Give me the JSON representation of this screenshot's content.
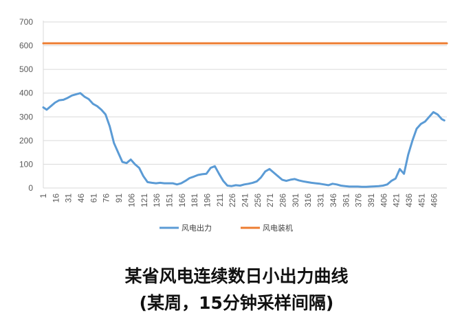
{
  "chart_data": {
    "type": "line",
    "x_ticks": [
      "1",
      "16",
      "31",
      "46",
      "61",
      "76",
      "91",
      "106",
      "121",
      "136",
      "151",
      "166",
      "181",
      "196",
      "211",
      "226",
      "241",
      "256",
      "271",
      "286",
      "301",
      "316",
      "331",
      "346",
      "361",
      "376",
      "391",
      "406",
      "421",
      "436",
      "451",
      "466"
    ],
    "y_ticks": [
      "0",
      "100",
      "200",
      "300",
      "400",
      "500",
      "600",
      "700"
    ],
    "ylim": [
      0,
      700
    ],
    "xlim": [
      1,
      481
    ],
    "grid": "horizontal",
    "legend_position": "bottom",
    "series": [
      {
        "name": "风电出力",
        "color": "#5b9bd5",
        "x": [
          1,
          5,
          10,
          15,
          20,
          25,
          30,
          35,
          40,
          45,
          50,
          55,
          60,
          65,
          70,
          75,
          80,
          85,
          90,
          95,
          100,
          105,
          110,
          115,
          120,
          125,
          130,
          135,
          140,
          145,
          150,
          155,
          160,
          165,
          170,
          175,
          180,
          185,
          190,
          195,
          200,
          205,
          210,
          215,
          220,
          225,
          230,
          235,
          240,
          245,
          250,
          255,
          260,
          265,
          270,
          275,
          280,
          285,
          290,
          295,
          300,
          305,
          310,
          315,
          320,
          325,
          330,
          335,
          340,
          345,
          350,
          355,
          360,
          365,
          370,
          375,
          380,
          385,
          390,
          395,
          400,
          405,
          410,
          415,
          420,
          425,
          430,
          435,
          440,
          445,
          450,
          455,
          460,
          465,
          470,
          475,
          478
        ],
        "y": [
          340,
          330,
          345,
          360,
          370,
          372,
          380,
          390,
          395,
          400,
          385,
          375,
          355,
          345,
          330,
          310,
          260,
          190,
          150,
          110,
          105,
          120,
          100,
          85,
          50,
          25,
          22,
          20,
          22,
          20,
          20,
          20,
          15,
          20,
          30,
          42,
          48,
          55,
          58,
          60,
          85,
          92,
          60,
          30,
          10,
          8,
          12,
          10,
          15,
          18,
          22,
          28,
          45,
          70,
          80,
          65,
          50,
          35,
          30,
          35,
          38,
          32,
          28,
          25,
          22,
          20,
          18,
          15,
          12,
          18,
          15,
          10,
          8,
          6,
          6,
          6,
          5,
          5,
          6,
          7,
          8,
          10,
          15,
          30,
          40,
          80,
          60,
          140,
          200,
          250,
          270,
          280,
          300,
          320,
          310,
          290,
          285
        ]
      },
      {
        "name": "风电装机",
        "color": "#ed7d31",
        "x": [
          1,
          481
        ],
        "y": [
          610,
          610
        ]
      }
    ]
  },
  "caption": {
    "title": "某省风电连续数日小出力曲线",
    "subtitle": "(某周，15分钟采样间隔)"
  }
}
